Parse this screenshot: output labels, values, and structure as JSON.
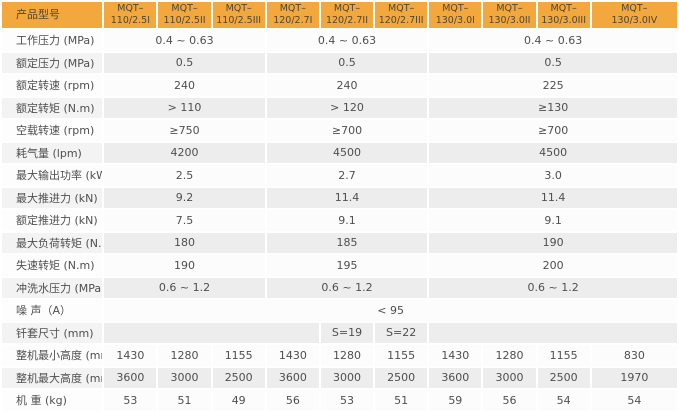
{
  "colors": {
    "header_bg": "#F3A83D",
    "header_text": "#4F4636",
    "row_white": "#FCFCFC",
    "row_gray": "#EDEDED",
    "label_white": "#FDFDFD",
    "label_gray": "#F3F3F3",
    "body_text": "#4F4F4F"
  },
  "table": {
    "header": {
      "label": "产品型号",
      "columns": [
        {
          "line1": "MQT–",
          "line2": "110/2.5I"
        },
        {
          "line1": "MQT–",
          "line2": "110/2.5II"
        },
        {
          "line1": "MQT–",
          "line2": "110/2.5III"
        },
        {
          "line1": "MQT–",
          "line2": "120/2.7I"
        },
        {
          "line1": "MQT–",
          "line2": "120/2.7II"
        },
        {
          "line1": "MQT–",
          "line2": "120/2.7III"
        },
        {
          "line1": "MQT–",
          "line2": "130/3.0I"
        },
        {
          "line1": "MQT–",
          "line2": "130/3.0II"
        },
        {
          "line1": "MQT–",
          "line2": "130/3.0III"
        },
        {
          "line1": "MQT–",
          "line2": "130/3.0IV"
        }
      ]
    },
    "rows": [
      {
        "label": "工作压力 (MPa)",
        "cells": [
          {
            "text": "0.4 ~ 0.63",
            "span": 3
          },
          {
            "text": "0.4 ~ 0.63",
            "span": 3
          },
          {
            "text": "0.4 ~ 0.63",
            "span": 4
          }
        ]
      },
      {
        "label": "额定压力 (MPa)",
        "cells": [
          {
            "text": "0.5",
            "span": 3
          },
          {
            "text": "0.5",
            "span": 3
          },
          {
            "text": "0.5",
            "span": 4
          }
        ]
      },
      {
        "label": "额定转速 (rpm)",
        "cells": [
          {
            "text": "240",
            "span": 3
          },
          {
            "text": "240",
            "span": 3
          },
          {
            "text": "225",
            "span": 4
          }
        ]
      },
      {
        "label": "额定转矩 (N.m)",
        "cells": [
          {
            "text": "> 110",
            "span": 3
          },
          {
            "text": "> 120",
            "span": 3
          },
          {
            "text": "≥130",
            "span": 4
          }
        ]
      },
      {
        "label": "空载转速 (rpm)",
        "cells": [
          {
            "text": "≥750",
            "span": 3
          },
          {
            "text": "≥700",
            "span": 3
          },
          {
            "text": "≥700",
            "span": 4
          }
        ]
      },
      {
        "label": "耗气量 (lpm)",
        "cells": [
          {
            "text": "4200",
            "span": 3
          },
          {
            "text": "4500",
            "span": 3
          },
          {
            "text": "4500",
            "span": 4
          }
        ]
      },
      {
        "label": "最大输出功率 (kW)",
        "cells": [
          {
            "text": "2.5",
            "span": 3
          },
          {
            "text": "2.7",
            "span": 3
          },
          {
            "text": "3.0",
            "span": 4
          }
        ]
      },
      {
        "label": "最大推进力 (kN)",
        "cells": [
          {
            "text": "9.2",
            "span": 3
          },
          {
            "text": "11.4",
            "span": 3
          },
          {
            "text": "11.4",
            "span": 4
          }
        ]
      },
      {
        "label": "额定推进力 (kN)",
        "cells": [
          {
            "text": "7.5",
            "span": 3
          },
          {
            "text": "9.1",
            "span": 3
          },
          {
            "text": "9.1",
            "span": 4
          }
        ]
      },
      {
        "label": "最大负荷转矩 (N.m)",
        "cells": [
          {
            "text": "180",
            "span": 3
          },
          {
            "text": "185",
            "span": 3
          },
          {
            "text": "190",
            "span": 4
          }
        ]
      },
      {
        "label": "失速转矩 (N.m)",
        "cells": [
          {
            "text": "190",
            "span": 3
          },
          {
            "text": "195",
            "span": 3
          },
          {
            "text": "200",
            "span": 4
          }
        ]
      },
      {
        "label": "冲洗水压力 (MPa)",
        "cells": [
          {
            "text": "0.6 ~ 1.2",
            "span": 3
          },
          {
            "text": "0.6 ~ 1.2",
            "span": 3
          },
          {
            "text": "0.6 ~ 1.2",
            "span": 4
          }
        ]
      },
      {
        "label": "噪 声（A）",
        "cells": [
          {
            "text": "< 95",
            "span": 10
          }
        ]
      },
      {
        "label": "钎套尺寸 (mm)",
        "cells": [
          {
            "text": "",
            "span": 4
          },
          {
            "text": "S=19",
            "span": 1
          },
          {
            "text": "S=22",
            "span": 1
          },
          {
            "text": "",
            "span": 4
          }
        ]
      },
      {
        "label": "整机最小高度 (mm)",
        "cells": [
          {
            "text": "1430",
            "span": 1
          },
          {
            "text": "1280",
            "span": 1
          },
          {
            "text": "1155",
            "span": 1
          },
          {
            "text": "1430",
            "span": 1
          },
          {
            "text": "1280",
            "span": 1
          },
          {
            "text": "1155",
            "span": 1
          },
          {
            "text": "1430",
            "span": 1
          },
          {
            "text": "1280",
            "span": 1
          },
          {
            "text": "1155",
            "span": 1
          },
          {
            "text": "830",
            "span": 1
          }
        ]
      },
      {
        "label": "整机最大高度 (mm)",
        "cells": [
          {
            "text": "3600",
            "span": 1
          },
          {
            "text": "3000",
            "span": 1
          },
          {
            "text": "2500",
            "span": 1
          },
          {
            "text": "3600",
            "span": 1
          },
          {
            "text": "3000",
            "span": 1
          },
          {
            "text": "2500",
            "span": 1
          },
          {
            "text": "3600",
            "span": 1
          },
          {
            "text": "3000",
            "span": 1
          },
          {
            "text": "2500",
            "span": 1
          },
          {
            "text": "1970",
            "span": 1
          }
        ]
      },
      {
        "label": "机 重 (kg)",
        "cells": [
          {
            "text": "53",
            "span": 1
          },
          {
            "text": "51",
            "span": 1
          },
          {
            "text": "49",
            "span": 1
          },
          {
            "text": "56",
            "span": 1
          },
          {
            "text": "53",
            "span": 1
          },
          {
            "text": "51",
            "span": 1
          },
          {
            "text": "59",
            "span": 1
          },
          {
            "text": "56",
            "span": 1
          },
          {
            "text": "54",
            "span": 1
          },
          {
            "text": "54",
            "span": 1
          }
        ]
      }
    ]
  }
}
